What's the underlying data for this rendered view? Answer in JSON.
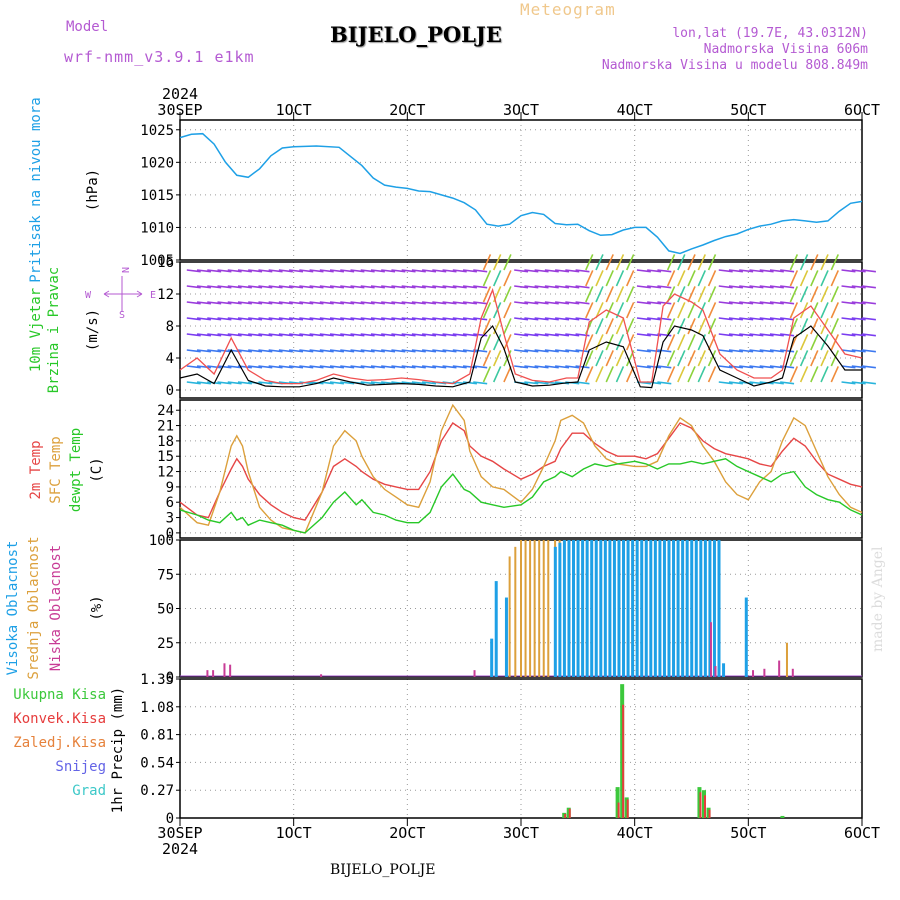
{
  "header": {
    "model_label": "Model",
    "model_name": "wrf-nmm_v3.9.1  e1km",
    "product": "Meteogram",
    "station": "BIJELO_POLJE",
    "coords": "lon,lat (19.7E, 43.0312N)",
    "elevation": "Nadmorska Visina 606m",
    "model_elevation": "Nadmorska Visina u modelu 808.849m",
    "watermark": "made by Angel",
    "footer_station": "BIJELO_POLJE"
  },
  "colors": {
    "pressure": "#1ea0e6",
    "temp2m": "#e64646",
    "sfc_temp": "#dca03c",
    "dewpoint": "#28c828",
    "cloud_high": "#1ea0e6",
    "cloud_mid": "#dca03c",
    "cloud_low": "#c83c96",
    "precip_total": "#3cc83c",
    "precip_conv": "#e63c3c",
    "precip_frozen": "#e6823c",
    "snow": "#6464e6",
    "hail": "#3cc8c8",
    "label_purple": "#b45ad2"
  },
  "time_axis": {
    "year": "2024",
    "ticks": [
      "30SEP",
      "1OCT",
      "2OCT",
      "3OCT",
      "4OCT",
      "5OCT",
      "6OCT"
    ]
  },
  "chart_data": [
    {
      "type": "line",
      "panel": "pressure",
      "ylabel_main": "Pritisak na nivou mora",
      "unit": "(hPa)",
      "yticks": [
        "1005",
        "1010",
        "1015",
        "1020",
        "1025"
      ],
      "ylim": [
        1005,
        1026.5
      ],
      "x": [
        0,
        0.1,
        0.2,
        0.3,
        0.4,
        0.5,
        0.6,
        0.7,
        0.8,
        0.9,
        1.0,
        1.2,
        1.4,
        1.6,
        1.7,
        1.8,
        1.9,
        2.0,
        2.1,
        2.2,
        2.3,
        2.4,
        2.5,
        2.6,
        2.7,
        2.8,
        2.9,
        3.0,
        3.1,
        3.2,
        3.3,
        3.4,
        3.5,
        3.6,
        3.7,
        3.8,
        3.9,
        4.0,
        4.1,
        4.2,
        4.3,
        4.4,
        4.5,
        4.6,
        4.7,
        4.8,
        4.9,
        5.0,
        5.1,
        5.2,
        5.3,
        5.4,
        5.5,
        5.6,
        5.7,
        5.8,
        5.9,
        6.0
      ],
      "series": [
        {
          "values": [
            1023.8,
            1024.3,
            1024.4,
            1022.8,
            1020.0,
            1018.0,
            1017.7,
            1019.0,
            1021.0,
            1022.2,
            1022.4,
            1022.5,
            1022.3,
            1019.5,
            1017.6,
            1016.5,
            1016.2,
            1016.0,
            1015.6,
            1015.5,
            1015.0,
            1014.5,
            1013.8,
            1012.7,
            1010.5,
            1010.2,
            1010.5,
            1011.8,
            1012.3,
            1012.0,
            1010.6,
            1010.4,
            1010.5,
            1009.5,
            1008.8,
            1008.9,
            1009.6,
            1010.0,
            1010.0,
            1008.5,
            1006.4,
            1006.0,
            1006.7,
            1007.3,
            1008.0,
            1008.6,
            1009.0,
            1009.7,
            1010.2,
            1010.5,
            1011.0,
            1011.2,
            1011.0,
            1010.8,
            1011.0,
            1012.5,
            1013.7,
            1014.0
          ]
        }
      ]
    },
    {
      "type": "line",
      "panel": "wind",
      "ylabel_main": "10m Vjetar",
      "ylabel_sub": "Brzina i Pravac",
      "unit": "(m/s)",
      "rose": {
        "n": "N",
        "e": "E",
        "s": "S",
        "w": "W"
      },
      "yticks": [
        "0",
        "4",
        "8",
        "12",
        "16"
      ],
      "ylim": [
        -1,
        16
      ],
      "x": [
        0,
        0.15,
        0.3,
        0.45,
        0.6,
        0.75,
        0.9,
        1.05,
        1.2,
        1.35,
        1.5,
        1.65,
        1.8,
        1.95,
        2.1,
        2.25,
        2.4,
        2.55,
        2.65,
        2.75,
        2.85,
        2.95,
        3.1,
        3.25,
        3.4,
        3.5,
        3.6,
        3.75,
        3.9,
        4.05,
        4.15,
        4.25,
        4.35,
        4.5,
        4.6,
        4.75,
        4.9,
        5.05,
        5.2,
        5.3,
        5.4,
        5.55,
        5.7,
        5.85,
        6.0
      ],
      "series": [
        {
          "values": [
            1.5,
            2.0,
            0.8,
            5.0,
            1.2,
            0.5,
            0.4,
            0.4,
            0.8,
            1.5,
            1.0,
            0.6,
            0.7,
            0.8,
            0.7,
            0.5,
            0.4,
            1.0,
            6.5,
            8.0,
            5.2,
            1.0,
            0.5,
            0.6,
            0.9,
            1.0,
            5.0,
            6.0,
            5.4,
            0.4,
            0.3,
            6.0,
            8.0,
            7.5,
            6.8,
            2.5,
            1.5,
            0.5,
            1.0,
            1.5,
            6.5,
            8.0,
            5.5,
            2.5,
            2.5
          ]
        },
        {
          "values": [
            2.5,
            4.0,
            2.0,
            6.5,
            2.5,
            1.2,
            0.8,
            0.8,
            1.2,
            2.0,
            1.5,
            1.2,
            1.3,
            1.5,
            1.3,
            1.0,
            0.8,
            2.0,
            9.0,
            12.5,
            7.0,
            2.0,
            1.2,
            1.0,
            1.5,
            1.5,
            8.5,
            10.0,
            9.0,
            1.0,
            1.0,
            10.5,
            12.0,
            11.0,
            10.0,
            4.5,
            2.5,
            1.5,
            1.5,
            2.5,
            9.0,
            10.5,
            7.5,
            4.5,
            4.0
          ]
        }
      ]
    },
    {
      "type": "line",
      "panel": "temperature",
      "ylabel_main": "2m Temp",
      "ylabel_sub": "SFC Temp",
      "ylabel_third": "dewpt Temp",
      "unit": "(C)",
      "yticks": [
        "0",
        "3",
        "6",
        "9",
        "12",
        "15",
        "18",
        "21",
        "24"
      ],
      "ylim": [
        -1,
        26
      ],
      "x": [
        0,
        0.15,
        0.25,
        0.35,
        0.45,
        0.5,
        0.55,
        0.6,
        0.7,
        0.8,
        0.9,
        1.0,
        1.1,
        1.25,
        1.35,
        1.45,
        1.55,
        1.6,
        1.7,
        1.8,
        1.9,
        2.0,
        2.1,
        2.2,
        2.3,
        2.4,
        2.5,
        2.55,
        2.65,
        2.75,
        2.85,
        3.0,
        3.1,
        3.2,
        3.3,
        3.35,
        3.45,
        3.55,
        3.65,
        3.75,
        3.85,
        4.0,
        4.1,
        4.2,
        4.3,
        4.4,
        4.5,
        4.6,
        4.7,
        4.8,
        4.9,
        5.0,
        5.1,
        5.2,
        5.3,
        5.4,
        5.5,
        5.6,
        5.7,
        5.8,
        5.9,
        6.0
      ],
      "series": [
        {
          "name": "2m Temp",
          "values": [
            6.0,
            3.5,
            3.0,
            8.0,
            12.5,
            14.5,
            13.0,
            10.5,
            7.5,
            5.5,
            4.0,
            3.0,
            2.5,
            8.0,
            13.0,
            14.5,
            13.0,
            12.0,
            10.5,
            9.5,
            9.0,
            8.5,
            8.5,
            12.0,
            18.0,
            21.5,
            20.0,
            17.0,
            15.0,
            14.0,
            12.5,
            10.5,
            11.5,
            13.0,
            14.0,
            16.5,
            19.5,
            19.5,
            17.5,
            16.0,
            15.0,
            15.0,
            14.5,
            15.5,
            18.5,
            21.5,
            20.5,
            18.0,
            16.5,
            15.5,
            15.0,
            14.5,
            13.5,
            13.0,
            16.0,
            18.5,
            17.0,
            14.0,
            11.5,
            10.5,
            9.5,
            9.0
          ]
        },
        {
          "name": "SFC Temp",
          "values": [
            5.0,
            2.0,
            1.5,
            8.0,
            17.0,
            19.0,
            17.0,
            12.0,
            5.0,
            2.5,
            1.0,
            0.5,
            0.0,
            8.0,
            17.0,
            20.0,
            18.0,
            15.0,
            11.0,
            8.5,
            7.0,
            5.5,
            5.0,
            10.0,
            20.0,
            25.0,
            22.0,
            16.0,
            11.0,
            9.0,
            8.5,
            6.0,
            8.5,
            13.0,
            18.0,
            22.0,
            23.0,
            21.5,
            17.0,
            14.5,
            13.5,
            13.0,
            13.0,
            14.0,
            19.0,
            22.5,
            21.0,
            17.0,
            14.0,
            10.0,
            7.5,
            6.5,
            10.0,
            12.0,
            18.0,
            22.5,
            21.0,
            16.0,
            11.0,
            7.5,
            5.0,
            4.0
          ]
        },
        {
          "name": "dewpt Temp",
          "values": [
            4.5,
            3.5,
            2.5,
            2.0,
            4.0,
            2.5,
            3.0,
            1.5,
            2.5,
            2.0,
            1.5,
            0.5,
            0.0,
            3.0,
            6.0,
            8.0,
            5.5,
            6.5,
            4.0,
            3.5,
            2.5,
            2.0,
            2.0,
            4.0,
            9.0,
            11.5,
            8.5,
            8.0,
            6.0,
            5.5,
            5.0,
            5.5,
            7.0,
            10.0,
            11.0,
            12.0,
            11.0,
            12.5,
            13.5,
            13.0,
            13.5,
            14.0,
            13.5,
            12.5,
            13.5,
            13.5,
            14.0,
            13.5,
            14.0,
            14.5,
            13.0,
            12.0,
            11.0,
            10.0,
            11.5,
            12.0,
            9.0,
            7.5,
            6.5,
            6.0,
            4.5,
            3.5
          ]
        }
      ]
    },
    {
      "type": "bar",
      "panel": "clouds",
      "ylabel_main": "Visoka Oblacnost",
      "ylabel_sub": "Srednja Oblacnost",
      "ylabel_third": "Niska Oblacnost",
      "unit": "(%)",
      "yticks": [
        "0",
        "25",
        "50",
        "75",
        "100"
      ],
      "ylim": [
        0,
        100
      ],
      "high": {
        "x": [
          2.72,
          2.76,
          2.85,
          3.28,
          3.32,
          3.36,
          3.4,
          3.44,
          3.48,
          3.52,
          3.56,
          3.6,
          3.64,
          3.68,
          3.72,
          3.76,
          3.8,
          3.84,
          3.88,
          3.92,
          3.96,
          4.0,
          4.04,
          4.08,
          4.12,
          4.16,
          4.2,
          4.24,
          4.28,
          4.32,
          4.36,
          4.4,
          4.44,
          4.48,
          4.52,
          4.56,
          4.6,
          4.64,
          4.68,
          4.72,
          4.76,
          4.96
        ],
        "values": [
          28,
          70,
          58,
          95,
          98,
          100,
          100,
          100,
          100,
          100,
          100,
          100,
          100,
          100,
          100,
          100,
          100,
          100,
          100,
          100,
          100,
          100,
          100,
          100,
          100,
          100,
          100,
          100,
          100,
          100,
          100,
          100,
          100,
          100,
          100,
          100,
          100,
          100,
          100,
          100,
          10,
          58
        ]
      },
      "mid": {
        "x": [
          2.9,
          2.95,
          3.0,
          3.04,
          3.08,
          3.12,
          3.16,
          3.2,
          3.24,
          3.3,
          3.34,
          3.38,
          3.42,
          3.46,
          3.5,
          3.54,
          3.58,
          3.62,
          3.66,
          3.7,
          3.74,
          3.78,
          3.82,
          3.86,
          3.9,
          3.94,
          3.98,
          4.02,
          4.06,
          4.1,
          4.14,
          4.18,
          4.22,
          4.26,
          4.3,
          4.34,
          4.38,
          4.42,
          4.46,
          4.5,
          4.54,
          4.58,
          4.62,
          4.66,
          4.7,
          5.34
        ],
        "values": [
          88,
          95,
          100,
          100,
          100,
          100,
          100,
          100,
          100,
          100,
          100,
          100,
          100,
          100,
          100,
          100,
          100,
          100,
          100,
          100,
          100,
          100,
          100,
          100,
          100,
          100,
          100,
          100,
          100,
          100,
          100,
          100,
          100,
          100,
          100,
          100,
          100,
          100,
          100,
          100,
          100,
          100,
          100,
          100,
          100,
          25
        ]
      },
      "low": {
        "x": [
          0.25,
          0.3,
          0.4,
          0.45,
          1.25,
          2.6,
          4.68,
          4.72,
          5.05,
          5.15,
          5.28,
          5.4
        ],
        "values": [
          5,
          5,
          10,
          9,
          2,
          5,
          40,
          8,
          5,
          6,
          12,
          6
        ]
      }
    },
    {
      "type": "bar",
      "panel": "precip",
      "legend": [
        "Ukupna Kisa",
        "Konvek.Kisa",
        "Zaledj.Kisa",
        "Snijeg",
        "Grad"
      ],
      "ylabel_main": "1hr Precip",
      "unit": "(mm)",
      "yticks": [
        "0",
        "0.27",
        "0.54",
        "0.81",
        "1.08",
        "1.35"
      ],
      "ylim": [
        0,
        1.35
      ],
      "total": {
        "x": [
          3.38,
          3.42,
          3.85,
          3.89,
          3.93,
          4.57,
          4.61,
          4.65,
          5.3
        ],
        "values": [
          0.05,
          0.1,
          0.3,
          1.3,
          0.2,
          0.3,
          0.27,
          0.1,
          0.02
        ]
      },
      "convective": {
        "x": [
          3.38,
          3.42,
          3.85,
          3.89,
          3.93,
          4.57,
          4.61,
          4.65
        ],
        "values": [
          0.04,
          0.09,
          0.15,
          1.1,
          0.18,
          0.25,
          0.22,
          0.08
        ]
      }
    }
  ]
}
